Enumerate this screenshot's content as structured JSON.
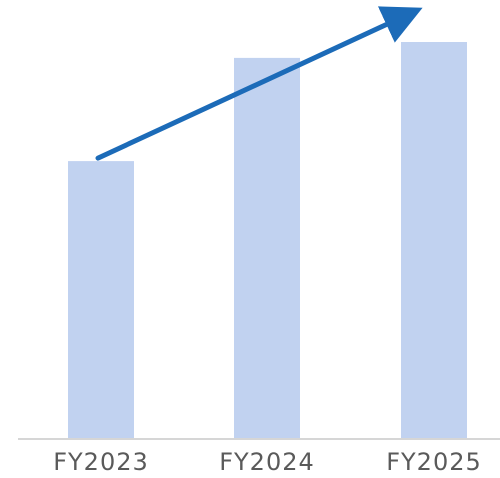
{
  "chart_data": {
    "type": "bar",
    "categories": [
      "FY2023",
      "FY2024",
      "FY2025"
    ],
    "values": [
      70,
      96,
      100
    ],
    "ylim": [
      0,
      100
    ],
    "grid": false,
    "legend": "none",
    "annotations": [
      {
        "type": "trend-arrow",
        "from_category": "FY2023",
        "to_category": "FY2025",
        "direction": "up"
      }
    ]
  },
  "colors": {
    "bar": "#c1d2f0",
    "axis": "#d6d6d6",
    "arrow": "#1c6bb8",
    "tick_text": "#5a5a5a"
  }
}
